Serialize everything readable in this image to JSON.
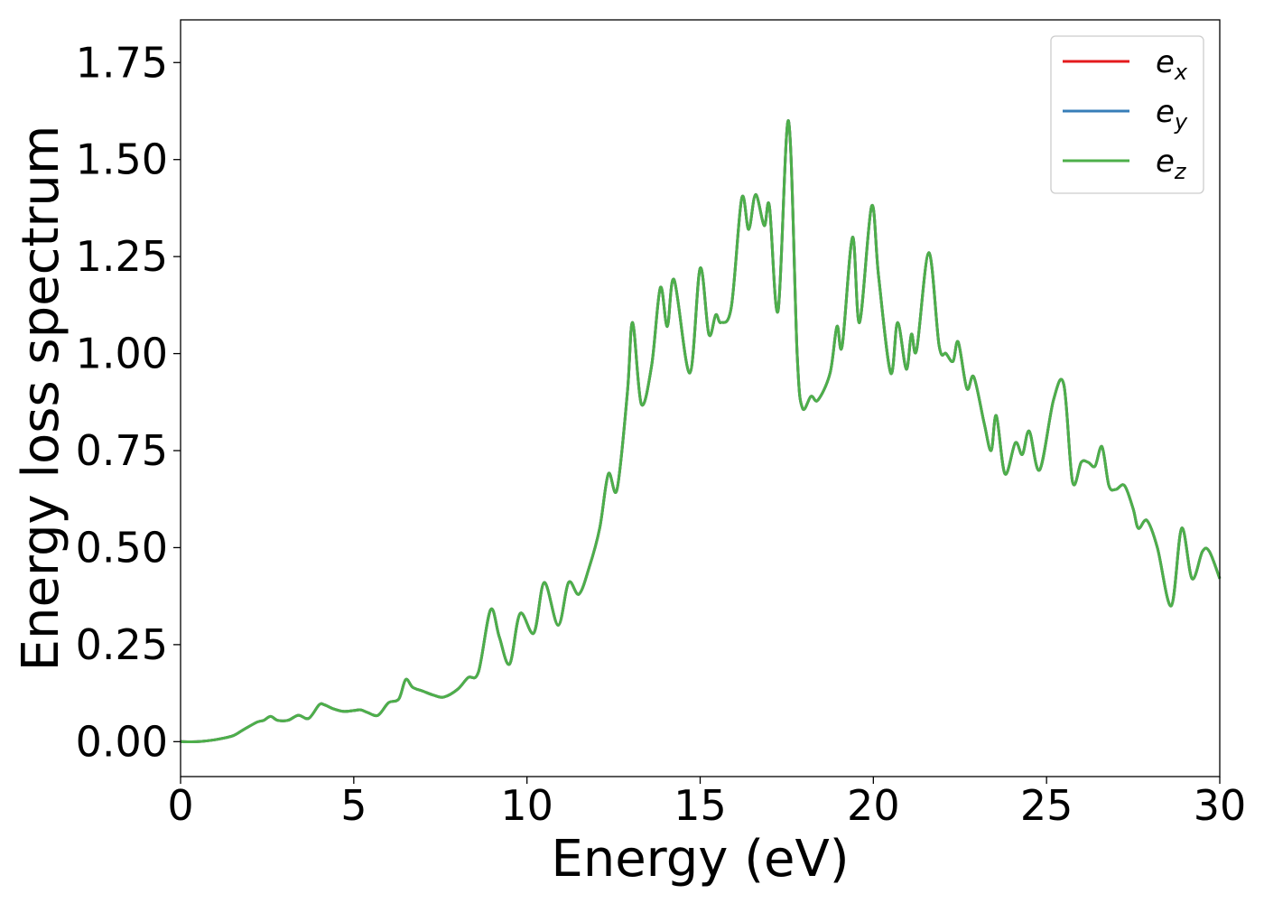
{
  "chart_data": {
    "type": "line",
    "title": "",
    "xlabel": "Energy (eV)",
    "ylabel": "Energy loss spectrum",
    "xlim": [
      0,
      30
    ],
    "ylim": [
      -0.09,
      1.86
    ],
    "xticks": [
      0,
      5,
      10,
      15,
      20,
      25,
      30
    ],
    "xtick_labels": [
      "0",
      "5",
      "10",
      "15",
      "20",
      "25",
      "30"
    ],
    "yticks": [
      0,
      0.25,
      0.5,
      0.75,
      1.0,
      1.25,
      1.5,
      1.75
    ],
    "ytick_labels": [
      "0.00",
      "0.25",
      "0.50",
      "0.75",
      "1.00",
      "1.25",
      "1.50",
      "1.75"
    ],
    "grid": false,
    "legend_position": "top-right",
    "x": [
      0,
      0.5,
      1.0,
      1.5,
      1.8,
      2.2,
      2.4,
      2.6,
      2.8,
      3.1,
      3.4,
      3.7,
      4.0,
      4.15,
      4.4,
      4.7,
      5.0,
      5.2,
      5.4,
      5.7,
      6.0,
      6.3,
      6.5,
      6.7,
      7.0,
      7.3,
      7.6,
      8.0,
      8.3,
      8.6,
      8.95,
      9.2,
      9.5,
      9.8,
      10.2,
      10.5,
      10.9,
      11.2,
      11.5,
      11.8,
      12.1,
      12.35,
      12.6,
      12.9,
      13.05,
      13.3,
      13.6,
      13.85,
      14.05,
      14.25,
      14.7,
      15.0,
      15.25,
      15.45,
      15.6,
      15.9,
      16.2,
      16.4,
      16.6,
      16.85,
      17.0,
      17.25,
      17.55,
      17.8,
      17.95,
      18.2,
      18.4,
      18.75,
      18.95,
      19.1,
      19.4,
      19.6,
      19.95,
      20.15,
      20.5,
      20.7,
      20.95,
      21.1,
      21.25,
      21.6,
      21.9,
      22.1,
      22.3,
      22.45,
      22.7,
      22.9,
      23.2,
      23.4,
      23.55,
      23.8,
      24.1,
      24.3,
      24.5,
      24.8,
      25.2,
      25.5,
      25.75,
      26.0,
      26.2,
      26.4,
      26.6,
      26.8,
      27.0,
      27.25,
      27.5,
      27.65,
      27.9,
      28.2,
      28.6,
      28.9,
      29.2,
      29.5,
      29.7,
      30.0
    ],
    "series": [
      {
        "name": "e_x",
        "name_base": "e",
        "name_sub": "x",
        "color": "#e41a1c",
        "values": [
          0.0,
          0.0,
          0.005,
          0.015,
          0.03,
          0.05,
          0.055,
          0.065,
          0.055,
          0.055,
          0.068,
          0.06,
          0.095,
          0.095,
          0.085,
          0.078,
          0.08,
          0.082,
          0.075,
          0.068,
          0.1,
          0.11,
          0.16,
          0.14,
          0.13,
          0.12,
          0.115,
          0.135,
          0.165,
          0.18,
          0.34,
          0.27,
          0.2,
          0.33,
          0.28,
          0.41,
          0.3,
          0.41,
          0.38,
          0.45,
          0.55,
          0.69,
          0.65,
          0.9,
          1.08,
          0.87,
          0.97,
          1.17,
          1.07,
          1.19,
          0.95,
          1.22,
          1.05,
          1.1,
          1.08,
          1.12,
          1.4,
          1.32,
          1.41,
          1.33,
          1.38,
          1.11,
          1.6,
          1.0,
          0.86,
          0.89,
          0.88,
          0.95,
          1.07,
          1.02,
          1.3,
          1.08,
          1.38,
          1.2,
          0.95,
          1.08,
          0.96,
          1.05,
          1.01,
          1.26,
          1.02,
          1.0,
          0.98,
          1.03,
          0.91,
          0.94,
          0.82,
          0.75,
          0.84,
          0.69,
          0.77,
          0.74,
          0.8,
          0.7,
          0.88,
          0.92,
          0.67,
          0.72,
          0.72,
          0.71,
          0.76,
          0.66,
          0.65,
          0.66,
          0.6,
          0.55,
          0.57,
          0.5,
          0.35,
          0.55,
          0.42,
          0.49,
          0.49,
          0.42
        ]
      },
      {
        "name": "e_y",
        "name_base": "e",
        "name_sub": "y",
        "color": "#377eb8",
        "values": [
          0.0,
          0.0,
          0.005,
          0.015,
          0.03,
          0.05,
          0.055,
          0.065,
          0.055,
          0.055,
          0.068,
          0.06,
          0.095,
          0.095,
          0.085,
          0.078,
          0.08,
          0.082,
          0.075,
          0.068,
          0.1,
          0.11,
          0.16,
          0.14,
          0.13,
          0.12,
          0.115,
          0.135,
          0.165,
          0.18,
          0.34,
          0.27,
          0.2,
          0.33,
          0.28,
          0.41,
          0.3,
          0.41,
          0.38,
          0.45,
          0.55,
          0.69,
          0.65,
          0.9,
          1.08,
          0.87,
          0.97,
          1.17,
          1.07,
          1.19,
          0.95,
          1.22,
          1.05,
          1.1,
          1.08,
          1.12,
          1.4,
          1.32,
          1.41,
          1.33,
          1.38,
          1.11,
          1.6,
          1.0,
          0.86,
          0.89,
          0.88,
          0.95,
          1.07,
          1.02,
          1.3,
          1.08,
          1.38,
          1.2,
          0.95,
          1.08,
          0.96,
          1.05,
          1.01,
          1.26,
          1.02,
          1.0,
          0.98,
          1.03,
          0.91,
          0.94,
          0.82,
          0.75,
          0.84,
          0.69,
          0.77,
          0.74,
          0.8,
          0.7,
          0.88,
          0.92,
          0.67,
          0.72,
          0.72,
          0.71,
          0.76,
          0.66,
          0.65,
          0.66,
          0.6,
          0.55,
          0.57,
          0.5,
          0.35,
          0.55,
          0.42,
          0.49,
          0.49,
          0.42
        ]
      },
      {
        "name": "e_z",
        "name_base": "e",
        "name_sub": "z",
        "color": "#4daf4a",
        "values": [
          0.0,
          0.0,
          0.005,
          0.015,
          0.03,
          0.05,
          0.055,
          0.065,
          0.055,
          0.055,
          0.068,
          0.06,
          0.095,
          0.095,
          0.085,
          0.078,
          0.08,
          0.082,
          0.075,
          0.068,
          0.1,
          0.11,
          0.16,
          0.14,
          0.13,
          0.12,
          0.115,
          0.135,
          0.165,
          0.18,
          0.34,
          0.27,
          0.2,
          0.33,
          0.28,
          0.41,
          0.3,
          0.41,
          0.38,
          0.45,
          0.55,
          0.69,
          0.65,
          0.9,
          1.08,
          0.87,
          0.97,
          1.17,
          1.07,
          1.19,
          0.95,
          1.22,
          1.05,
          1.1,
          1.08,
          1.12,
          1.4,
          1.32,
          1.41,
          1.33,
          1.38,
          1.11,
          1.6,
          1.0,
          0.86,
          0.89,
          0.88,
          0.95,
          1.07,
          1.02,
          1.3,
          1.08,
          1.38,
          1.2,
          0.95,
          1.08,
          0.96,
          1.05,
          1.01,
          1.26,
          1.02,
          1.0,
          0.98,
          1.03,
          0.91,
          0.94,
          0.82,
          0.75,
          0.84,
          0.69,
          0.77,
          0.74,
          0.8,
          0.7,
          0.88,
          0.92,
          0.67,
          0.72,
          0.72,
          0.71,
          0.76,
          0.66,
          0.65,
          0.66,
          0.6,
          0.55,
          0.57,
          0.5,
          0.35,
          0.55,
          0.42,
          0.49,
          0.49,
          0.42
        ]
      }
    ]
  }
}
